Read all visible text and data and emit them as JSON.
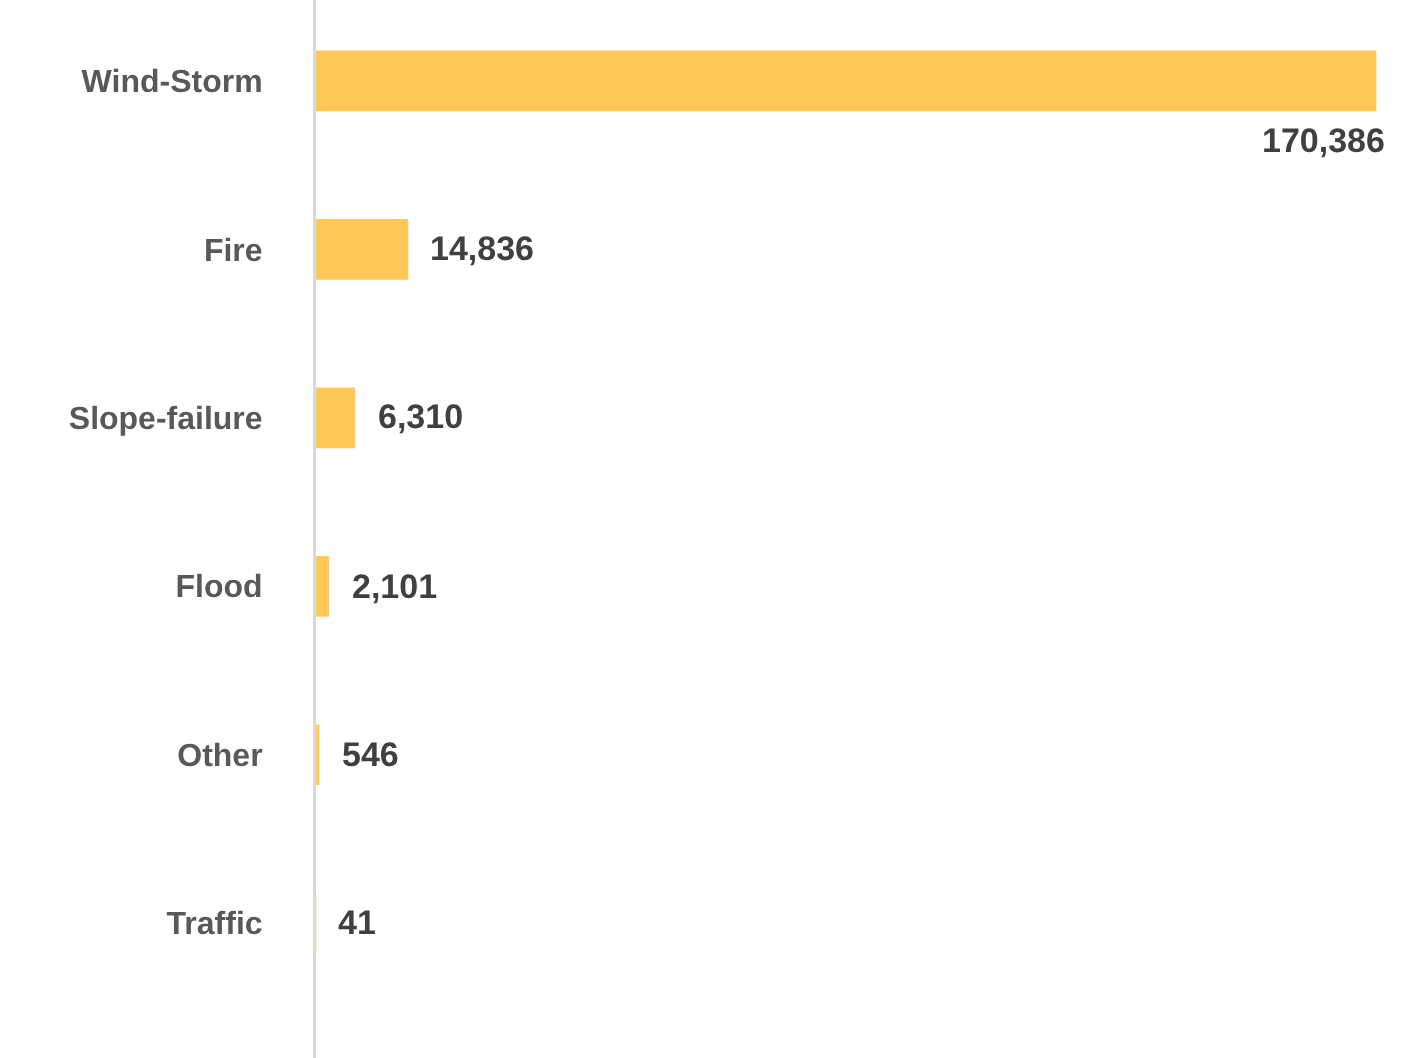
{
  "chart_data": {
    "type": "bar",
    "orientation": "horizontal",
    "categories": [
      "Wind-Storm",
      "Fire",
      "Slope-failure",
      "Flood",
      "Other",
      "Traffic"
    ],
    "values": [
      170386,
      14836,
      6310,
      2101,
      546,
      41
    ],
    "value_labels": [
      "170,386",
      "14,836",
      "6,310",
      "2,101",
      "546",
      "41"
    ],
    "color": "#ffc857"
  }
}
